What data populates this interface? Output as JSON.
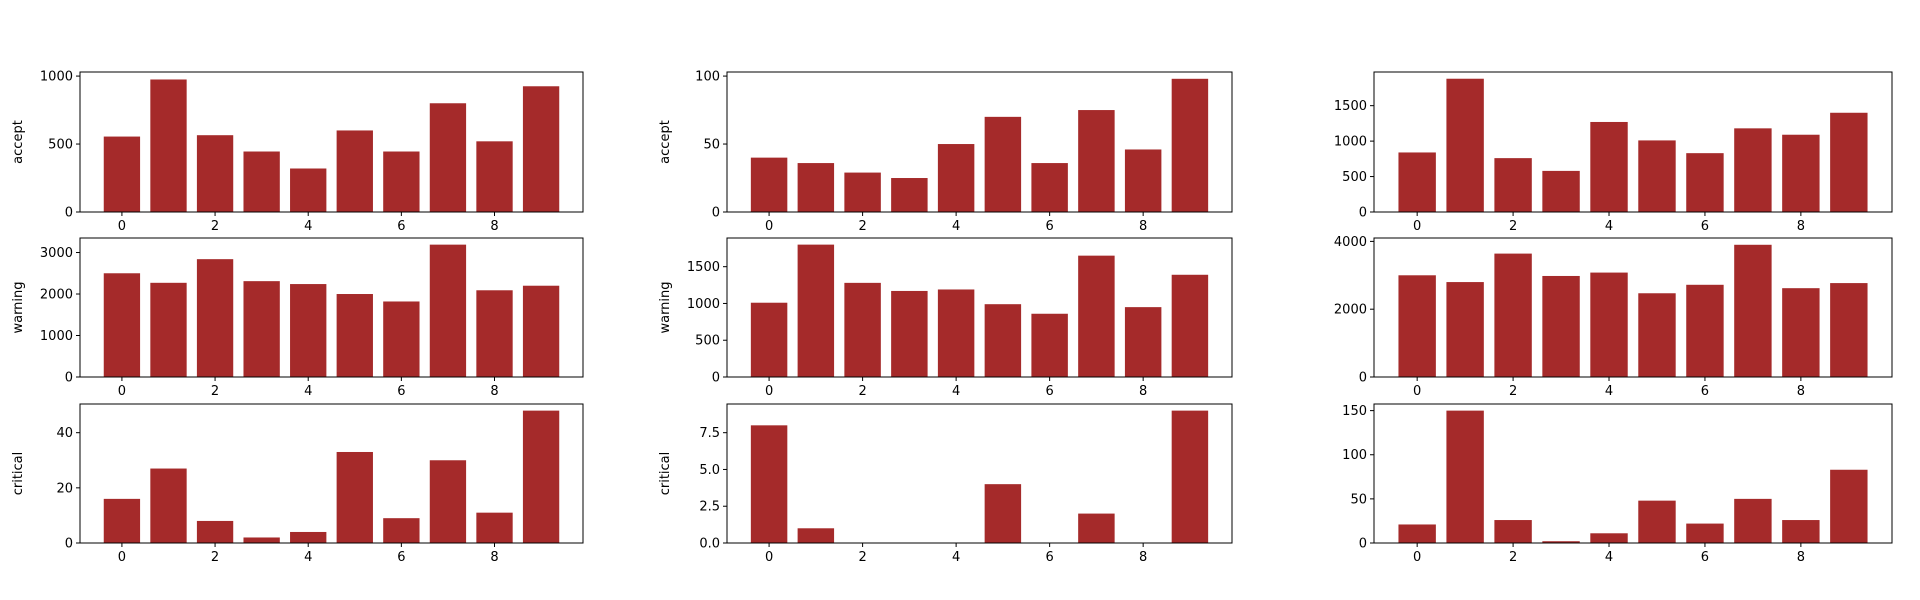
{
  "colors": {
    "bar": "#a52a2a",
    "background": "#ffffff",
    "axes": "#000000"
  },
  "chart_data": [
    {
      "type": "bar",
      "row": 0,
      "col": 0,
      "xlabel": "",
      "ylabel": "accept",
      "x": [
        0,
        1,
        2,
        3,
        4,
        5,
        6,
        7,
        8,
        9
      ],
      "values": [
        555,
        975,
        565,
        445,
        320,
        600,
        445,
        800,
        520,
        925
      ],
      "xticks": [
        0,
        2,
        4,
        6,
        8
      ],
      "yticks": [
        0,
        500,
        1000
      ],
      "ylim": [
        0,
        1030
      ],
      "xlim": [
        -0.9,
        9.9
      ]
    },
    {
      "type": "bar",
      "row": 0,
      "col": 1,
      "xlabel": "",
      "ylabel": "accept",
      "x": [
        0,
        1,
        2,
        3,
        4,
        5,
        6,
        7,
        8,
        9
      ],
      "values": [
        40,
        36,
        29,
        25,
        50,
        70,
        36,
        75,
        46,
        98
      ],
      "xticks": [
        0,
        2,
        4,
        6,
        8
      ],
      "yticks": [
        0,
        50,
        100
      ],
      "ylim": [
        0,
        103
      ],
      "xlim": [
        -0.9,
        9.9
      ]
    },
    {
      "type": "bar",
      "row": 0,
      "col": 2,
      "xlabel": "",
      "ylabel": "",
      "x": [
        0,
        1,
        2,
        3,
        4,
        5,
        6,
        7,
        8,
        9
      ],
      "values": [
        840,
        1880,
        760,
        580,
        1270,
        1010,
        830,
        1180,
        1090,
        1400
      ],
      "xticks": [
        0,
        2,
        4,
        6,
        8
      ],
      "yticks": [
        0,
        500,
        1000,
        1500
      ],
      "ylim": [
        0,
        1975
      ],
      "xlim": [
        -0.9,
        9.9
      ]
    },
    {
      "type": "bar",
      "row": 1,
      "col": 0,
      "xlabel": "",
      "ylabel": "warning",
      "x": [
        0,
        1,
        2,
        3,
        4,
        5,
        6,
        7,
        8,
        9
      ],
      "values": [
        2500,
        2270,
        2840,
        2310,
        2240,
        2000,
        1820,
        3190,
        2090,
        2200
      ],
      "xticks": [
        0,
        2,
        4,
        6,
        8
      ],
      "yticks": [
        0,
        1000,
        2000,
        3000
      ],
      "ylim": [
        0,
        3350
      ],
      "xlim": [
        -0.9,
        9.9
      ]
    },
    {
      "type": "bar",
      "row": 1,
      "col": 1,
      "xlabel": "",
      "ylabel": "warning",
      "x": [
        0,
        1,
        2,
        3,
        4,
        5,
        6,
        7,
        8,
        9
      ],
      "values": [
        1010,
        1800,
        1280,
        1170,
        1190,
        990,
        860,
        1650,
        950,
        1390
      ],
      "xticks": [
        0,
        2,
        4,
        6,
        8
      ],
      "yticks": [
        0,
        500,
        1000,
        1500
      ],
      "ylim": [
        0,
        1890
      ],
      "xlim": [
        -0.9,
        9.9
      ]
    },
    {
      "type": "bar",
      "row": 1,
      "col": 2,
      "xlabel": "",
      "ylabel": "",
      "x": [
        0,
        1,
        2,
        3,
        4,
        5,
        6,
        7,
        8,
        9
      ],
      "values": [
        3000,
        2800,
        3640,
        2980,
        3080,
        2470,
        2720,
        3900,
        2620,
        2770
      ],
      "xticks": [
        0,
        2,
        4,
        6,
        8
      ],
      "yticks": [
        0,
        2000,
        4000
      ],
      "ylim": [
        0,
        4100
      ],
      "xlim": [
        -0.9,
        9.9
      ]
    },
    {
      "type": "bar",
      "row": 2,
      "col": 0,
      "xlabel": "",
      "ylabel": "critical",
      "x": [
        0,
        1,
        2,
        3,
        4,
        5,
        6,
        7,
        8,
        9
      ],
      "values": [
        16,
        27,
        8,
        2,
        4,
        33,
        9,
        30,
        11,
        48
      ],
      "xticks": [
        0,
        2,
        4,
        6,
        8
      ],
      "yticks": [
        0,
        20,
        40
      ],
      "ylim": [
        0,
        50.4
      ],
      "xlim": [
        -0.9,
        9.9
      ]
    },
    {
      "type": "bar",
      "row": 2,
      "col": 1,
      "xlabel": "",
      "ylabel": "critical",
      "x": [
        0,
        1,
        2,
        3,
        4,
        5,
        6,
        7,
        8,
        9
      ],
      "values": [
        8,
        1,
        0,
        0,
        0,
        4,
        0,
        2,
        0,
        9
      ],
      "xticks": [
        0,
        2,
        4,
        6,
        8
      ],
      "yticks": [
        0.0,
        2.5,
        5.0,
        7.5
      ],
      "ytick_labels": [
        "0.0",
        "2.5",
        "5.0",
        "7.5"
      ],
      "ylim": [
        0,
        9.45
      ],
      "xlim": [
        -0.9,
        9.9
      ]
    },
    {
      "type": "bar",
      "row": 2,
      "col": 2,
      "xlabel": "",
      "ylabel": "",
      "x": [
        0,
        1,
        2,
        3,
        4,
        5,
        6,
        7,
        8,
        9
      ],
      "values": [
        21,
        150,
        26,
        2,
        11,
        48,
        22,
        50,
        26,
        83
      ],
      "xticks": [
        0,
        2,
        4,
        6,
        8
      ],
      "yticks": [
        0,
        50,
        100,
        150
      ],
      "ylim": [
        0,
        157.5
      ],
      "xlim": [
        -0.9,
        9.9
      ]
    }
  ]
}
